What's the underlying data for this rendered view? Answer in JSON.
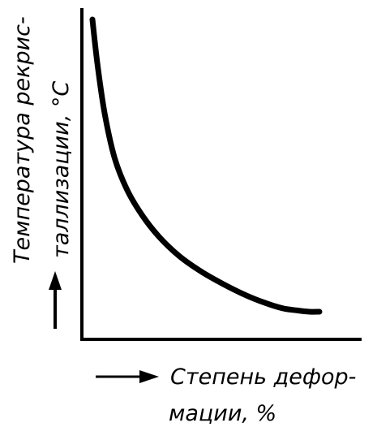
{
  "chart_data": {
    "type": "line",
    "xlabel_line1": "Степень дефор-",
    "xlabel_line2": "мации, %",
    "ylabel_line1": "Температура рекрис-",
    "ylabel_line2": "таллизации, °С",
    "grid": false,
    "xlim": [
      0,
      100
    ],
    "ylim": [
      0,
      100
    ],
    "series": [
      {
        "x": [
          0,
          2,
          5,
          9,
          14,
          20,
          27,
          35,
          44,
          53,
          62,
          70,
          77,
          83,
          88,
          92
        ],
        "y": [
          100,
          86,
          70,
          56,
          46,
          38,
          31,
          25,
          20,
          16,
          12.5,
          10,
          8.3,
          7.6,
          7.2,
          7.2
        ]
      }
    ]
  }
}
